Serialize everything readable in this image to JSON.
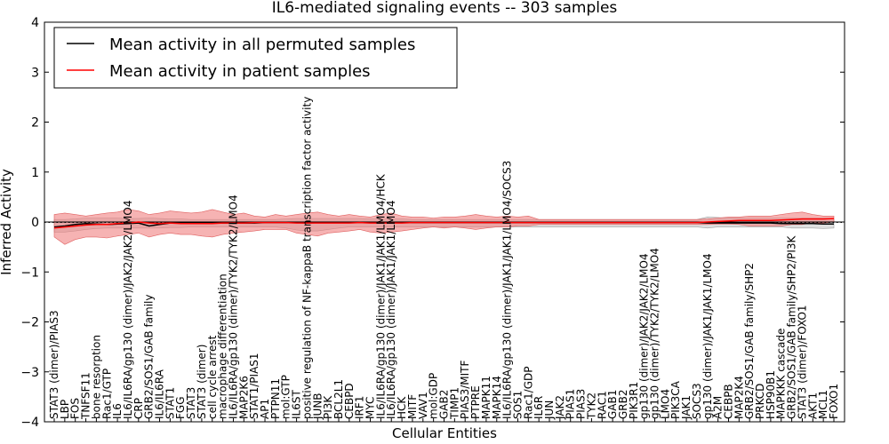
{
  "chart_data": {
    "type": "line",
    "title": "IL6-mediated signaling events -- 303 samples",
    "xlabel": "Cellular Entities",
    "ylabel": "Inferred Activity",
    "ylim": [
      -4,
      4
    ],
    "yticks": [
      -4,
      -3,
      -2,
      -1,
      0,
      1,
      2,
      3,
      4
    ],
    "ytick_labels": [
      "−4",
      "−3",
      "−2",
      "−1",
      "0",
      "1",
      "2",
      "3",
      "4"
    ],
    "legend_position": "top-left",
    "categories": [
      "STAT3 (dimer)/PIAS3",
      "LBP",
      "FOS",
      "TNFSF11",
      "bone resorption",
      "Rac1/GTP",
      "IL6",
      "IL6/IL6RA/gp130 (dimer)/JAK2/JAK2/LMO4",
      "CRP",
      "GRB2/SOS1/GAB family",
      "IL6/IL6RA",
      "STAT1",
      "FGG",
      "STAT3",
      "STAT3 (dimer)",
      "cell cycle arrest",
      "macrophage differentiation",
      "IL6/IL6RA/gp130 (dimer)/TYK2/TYK2/LMO4",
      "MAP2K6",
      "STAT1/PIAS1",
      "AP1",
      "PTPN11",
      "mol:GTP",
      "IL6ST",
      "positive regulation of NF-kappaB transcription factor activity",
      "JUNB",
      "PI3K",
      "BCL2L1",
      "CEBPD",
      "IRF1",
      "MYC",
      "IL6/IL6RA/gp130 (dimer)/JAK1/JAK1/LMO4/HCK",
      "IL6/IL6RA/gp130 (dimer)/JAK1/JAK1/LMO4",
      "HCK",
      "MITF",
      "VAV1",
      "mol:GDP",
      "GAB2",
      "TIMP1",
      "PIAS3/MITF",
      "PTPRE",
      "MAPK11",
      "MAPK14",
      "IL6/IL6RA/gp130 (dimer)/JAK1/JAK1/LMO4/SOCS3",
      "SOS1",
      "Rac1/GDP",
      "IL6R",
      "JUN",
      "JAK2",
      "PIAS1",
      "PIAS3",
      "TYK2",
      "RAC1",
      "GAB1",
      "GRB2",
      "PIK3R1",
      "gp130 (dimer)/JAK2/JAK2/LMO4",
      "gp130 (dimer)/TYK2/TYK2/LMO4",
      "LMO4",
      "PIK3CA",
      "JAK1",
      "SOCS3",
      "gp130 (dimer)/JAK1/JAK1/LMO4",
      "A2M",
      "CEBPB",
      "MAP2K4",
      "GRB2/SOS1/GAB family/SHP2",
      "PRKCD",
      "HSP90B1",
      "MAPKKK cascade",
      "GRB2/SOS1/GAB family/SHP2/PI3K",
      "STAT3 (dimer)/FOXO1",
      "AKT1",
      "MCL1",
      "FOXO1"
    ],
    "series": [
      {
        "name": "Mean activity in all permuted samples",
        "color": "#000000",
        "values": [
          -0.1,
          -0.08,
          -0.05,
          -0.03,
          -0.04,
          -0.05,
          -0.04,
          -0.03,
          -0.02,
          -0.08,
          -0.05,
          -0.02,
          -0.02,
          -0.02,
          -0.02,
          -0.02,
          -0.02,
          -0.02,
          -0.02,
          -0.02,
          -0.01,
          -0.01,
          -0.01,
          -0.01,
          -0.02,
          -0.01,
          -0.01,
          -0.01,
          -0.01,
          -0.01,
          -0.01,
          -0.01,
          -0.01,
          -0.01,
          -0.01,
          -0.01,
          -0.01,
          -0.01,
          -0.01,
          -0.01,
          -0.01,
          -0.01,
          -0.01,
          -0.01,
          -0.01,
          -0.01,
          -0.01,
          -0.01,
          -0.01,
          -0.01,
          -0.01,
          -0.01,
          -0.01,
          -0.01,
          -0.01,
          -0.01,
          -0.01,
          -0.01,
          -0.01,
          -0.01,
          -0.01,
          -0.01,
          -0.02,
          -0.02,
          -0.02,
          -0.02,
          -0.02,
          -0.02,
          -0.02,
          -0.03,
          -0.03,
          -0.03,
          -0.03,
          -0.04,
          -0.04
        ]
      },
      {
        "name": "Mean activity in patient samples",
        "color": "#ff0000",
        "values": [
          -0.12,
          -0.1,
          -0.08,
          -0.06,
          -0.05,
          -0.05,
          -0.03,
          -0.02,
          0.0,
          -0.02,
          -0.03,
          -0.02,
          -0.03,
          -0.03,
          -0.03,
          -0.03,
          -0.02,
          -0.02,
          -0.02,
          -0.01,
          -0.01,
          -0.01,
          -0.01,
          -0.02,
          -0.02,
          -0.02,
          -0.02,
          -0.02,
          -0.02,
          -0.01,
          -0.02,
          -0.02,
          -0.02,
          -0.02,
          -0.01,
          -0.01,
          -0.01,
          -0.01,
          -0.01,
          -0.01,
          -0.01,
          -0.01,
          -0.01,
          -0.01,
          -0.01,
          -0.01,
          -0.01,
          -0.01,
          -0.01,
          -0.01,
          -0.01,
          -0.01,
          -0.01,
          -0.01,
          -0.01,
          -0.01,
          -0.01,
          -0.01,
          -0.01,
          -0.01,
          -0.01,
          -0.01,
          0.0,
          0.01,
          0.02,
          0.03,
          0.03,
          0.03,
          0.03,
          0.04,
          0.05,
          0.06,
          0.06,
          0.06,
          0.07
        ]
      }
    ],
    "permuted_band": {
      "upper": [
        0.05,
        0.05,
        0.06,
        0.08,
        0.08,
        0.08,
        0.08,
        0.07,
        0.07,
        0.08,
        0.07,
        0.06,
        0.06,
        0.05,
        0.05,
        0.05,
        0.05,
        0.05,
        0.05,
        0.05,
        0.05,
        0.05,
        0.06,
        0.07,
        0.07,
        0.07,
        0.07,
        0.07,
        0.07,
        0.07,
        0.06,
        0.06,
        0.06,
        0.06,
        0.05,
        0.05,
        0.05,
        0.05,
        0.05,
        0.05,
        0.05,
        0.05,
        0.05,
        0.05,
        0.05,
        0.05,
        0.05,
        0.05,
        0.05,
        0.05,
        0.05,
        0.05,
        0.05,
        0.05,
        0.05,
        0.05,
        0.05,
        0.05,
        0.05,
        0.05,
        0.05,
        0.05,
        0.1,
        0.09,
        0.08,
        0.08,
        0.08,
        0.08,
        0.08,
        0.08,
        0.08,
        0.08,
        0.08,
        0.08,
        0.07
      ],
      "lower": [
        -0.2,
        -0.2,
        -0.18,
        -0.15,
        -0.13,
        -0.12,
        -0.12,
        -0.12,
        -0.12,
        -0.12,
        -0.12,
        -0.11,
        -0.11,
        -0.1,
        -0.1,
        -0.1,
        -0.1,
        -0.1,
        -0.1,
        -0.1,
        -0.1,
        -0.1,
        -0.12,
        -0.16,
        -0.18,
        -0.18,
        -0.15,
        -0.12,
        -0.1,
        -0.1,
        -0.1,
        -0.1,
        -0.1,
        -0.1,
        -0.1,
        -0.1,
        -0.1,
        -0.1,
        -0.1,
        -0.1,
        -0.1,
        -0.1,
        -0.1,
        -0.1,
        -0.1,
        -0.1,
        -0.1,
        -0.1,
        -0.1,
        -0.1,
        -0.1,
        -0.1,
        -0.1,
        -0.1,
        -0.1,
        -0.1,
        -0.1,
        -0.1,
        -0.1,
        -0.1,
        -0.1,
        -0.1,
        -0.12,
        -0.1,
        -0.1,
        -0.1,
        -0.1,
        -0.1,
        -0.1,
        -0.1,
        -0.12,
        -0.12,
        -0.12,
        -0.13,
        -0.12
      ]
    },
    "patient_band": {
      "upper": [
        0.15,
        0.18,
        0.15,
        0.12,
        0.15,
        0.18,
        0.2,
        0.25,
        0.22,
        0.15,
        0.18,
        0.22,
        0.2,
        0.18,
        0.2,
        0.25,
        0.2,
        0.15,
        0.18,
        0.12,
        0.1,
        0.15,
        0.12,
        0.15,
        0.18,
        0.2,
        0.15,
        0.12,
        0.15,
        0.12,
        0.1,
        0.15,
        0.18,
        0.12,
        0.1,
        0.1,
        0.08,
        0.1,
        0.1,
        0.12,
        0.15,
        0.12,
        0.1,
        0.12,
        0.1,
        0.12,
        0.05,
        0.05,
        0.05,
        0.05,
        0.05,
        0.05,
        0.05,
        0.05,
        0.05,
        0.05,
        0.05,
        0.05,
        0.05,
        0.05,
        0.05,
        0.05,
        0.06,
        0.08,
        0.1,
        0.1,
        0.12,
        0.12,
        0.12,
        0.15,
        0.18,
        0.2,
        0.15,
        0.12,
        0.12
      ],
      "lower": [
        -0.3,
        -0.45,
        -0.35,
        -0.3,
        -0.3,
        -0.32,
        -0.28,
        -0.25,
        -0.22,
        -0.3,
        -0.25,
        -0.22,
        -0.25,
        -0.25,
        -0.28,
        -0.3,
        -0.25,
        -0.22,
        -0.2,
        -0.18,
        -0.15,
        -0.15,
        -0.15,
        -0.22,
        -0.25,
        -0.28,
        -0.22,
        -0.2,
        -0.18,
        -0.15,
        -0.2,
        -0.22,
        -0.2,
        -0.18,
        -0.15,
        -0.12,
        -0.1,
        -0.12,
        -0.1,
        -0.12,
        -0.15,
        -0.12,
        -0.1,
        -0.1,
        -0.08,
        -0.08,
        -0.05,
        -0.05,
        -0.05,
        -0.05,
        -0.05,
        -0.05,
        -0.05,
        -0.05,
        -0.05,
        -0.05,
        -0.05,
        -0.05,
        -0.05,
        -0.05,
        -0.05,
        -0.05,
        -0.05,
        -0.04,
        -0.04,
        -0.05,
        -0.08,
        -0.08,
        -0.08,
        -0.08,
        -0.05,
        -0.05,
        -0.02,
        -0.02,
        0.0
      ]
    },
    "colors": {
      "patient_band": "#f08080",
      "permuted_band": "#d3d3d3",
      "zero_line": "#000000"
    }
  }
}
